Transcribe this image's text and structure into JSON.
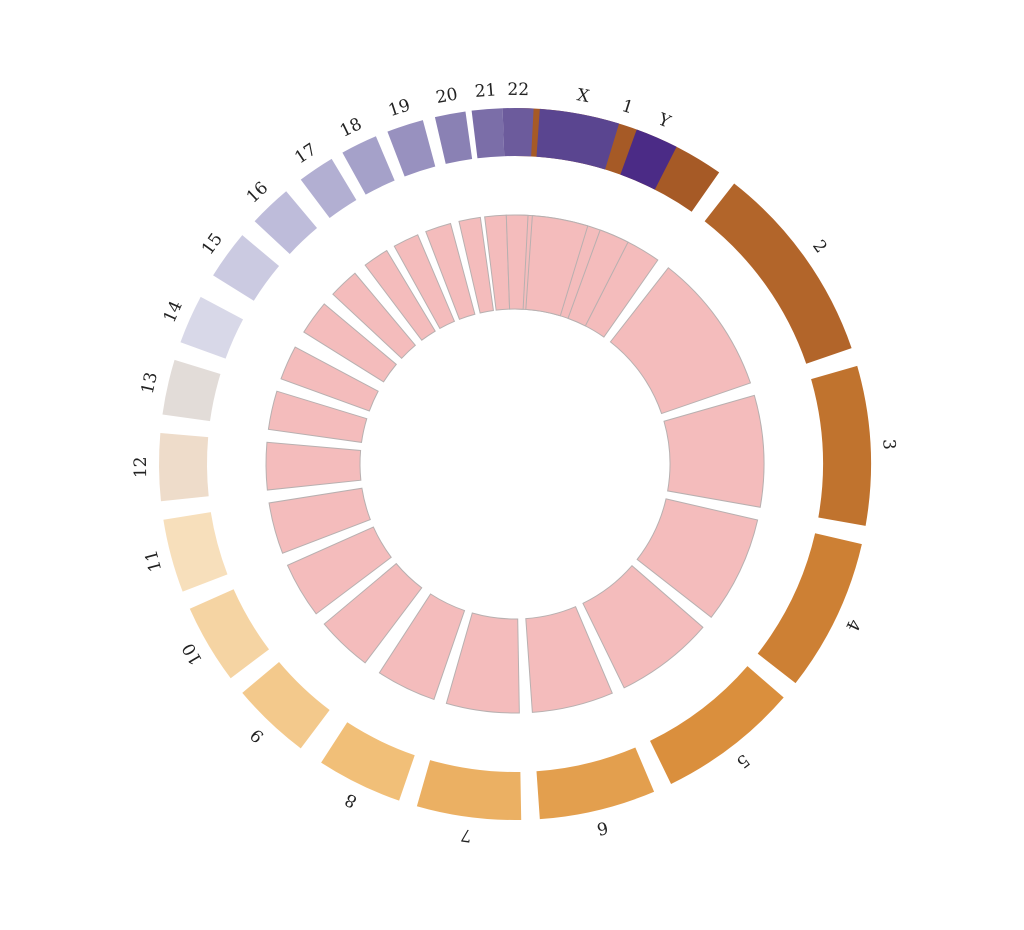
{
  "chart_data": {
    "type": "circos-ideogram",
    "title": "",
    "chromosomes": [
      {
        "label": "1",
        "color": "#a65a26"
      },
      {
        "label": "2",
        "color": "#b2652a"
      },
      {
        "label": "3",
        "color": "#c0732e"
      },
      {
        "label": "4",
        "color": "#cd8034"
      },
      {
        "label": "5",
        "color": "#da8f3d"
      },
      {
        "label": "6",
        "color": "#e39f4e"
      },
      {
        "label": "7",
        "color": "#ebb063"
      },
      {
        "label": "8",
        "color": "#f1bf78"
      },
      {
        "label": "9",
        "color": "#f3c98c"
      },
      {
        "label": "10",
        "color": "#f5d4a3"
      },
      {
        "label": "11",
        "color": "#f7dfbb"
      },
      {
        "label": "12",
        "color": "#eedcca"
      },
      {
        "label": "13",
        "color": "#e2dcd8"
      },
      {
        "label": "14",
        "color": "#d8d8e8"
      },
      {
        "label": "15",
        "color": "#cbcae1"
      },
      {
        "label": "16",
        "color": "#bebcda"
      },
      {
        "label": "17",
        "color": "#b2afd2"
      },
      {
        "label": "18",
        "color": "#a5a1c9"
      },
      {
        "label": "19",
        "color": "#9891bf"
      },
      {
        "label": "20",
        "color": "#8a81b4"
      },
      {
        "label": "21",
        "color": "#7b6ea8"
      },
      {
        "label": "22",
        "color": "#6c5b9c"
      },
      {
        "label": "X",
        "color": "#5a4590"
      },
      {
        "label": "Y",
        "color": "#4b2b86"
      }
    ],
    "inner_track_color": "#f4bcbc",
    "inner_track_stroke": "#b8b0b0"
  }
}
